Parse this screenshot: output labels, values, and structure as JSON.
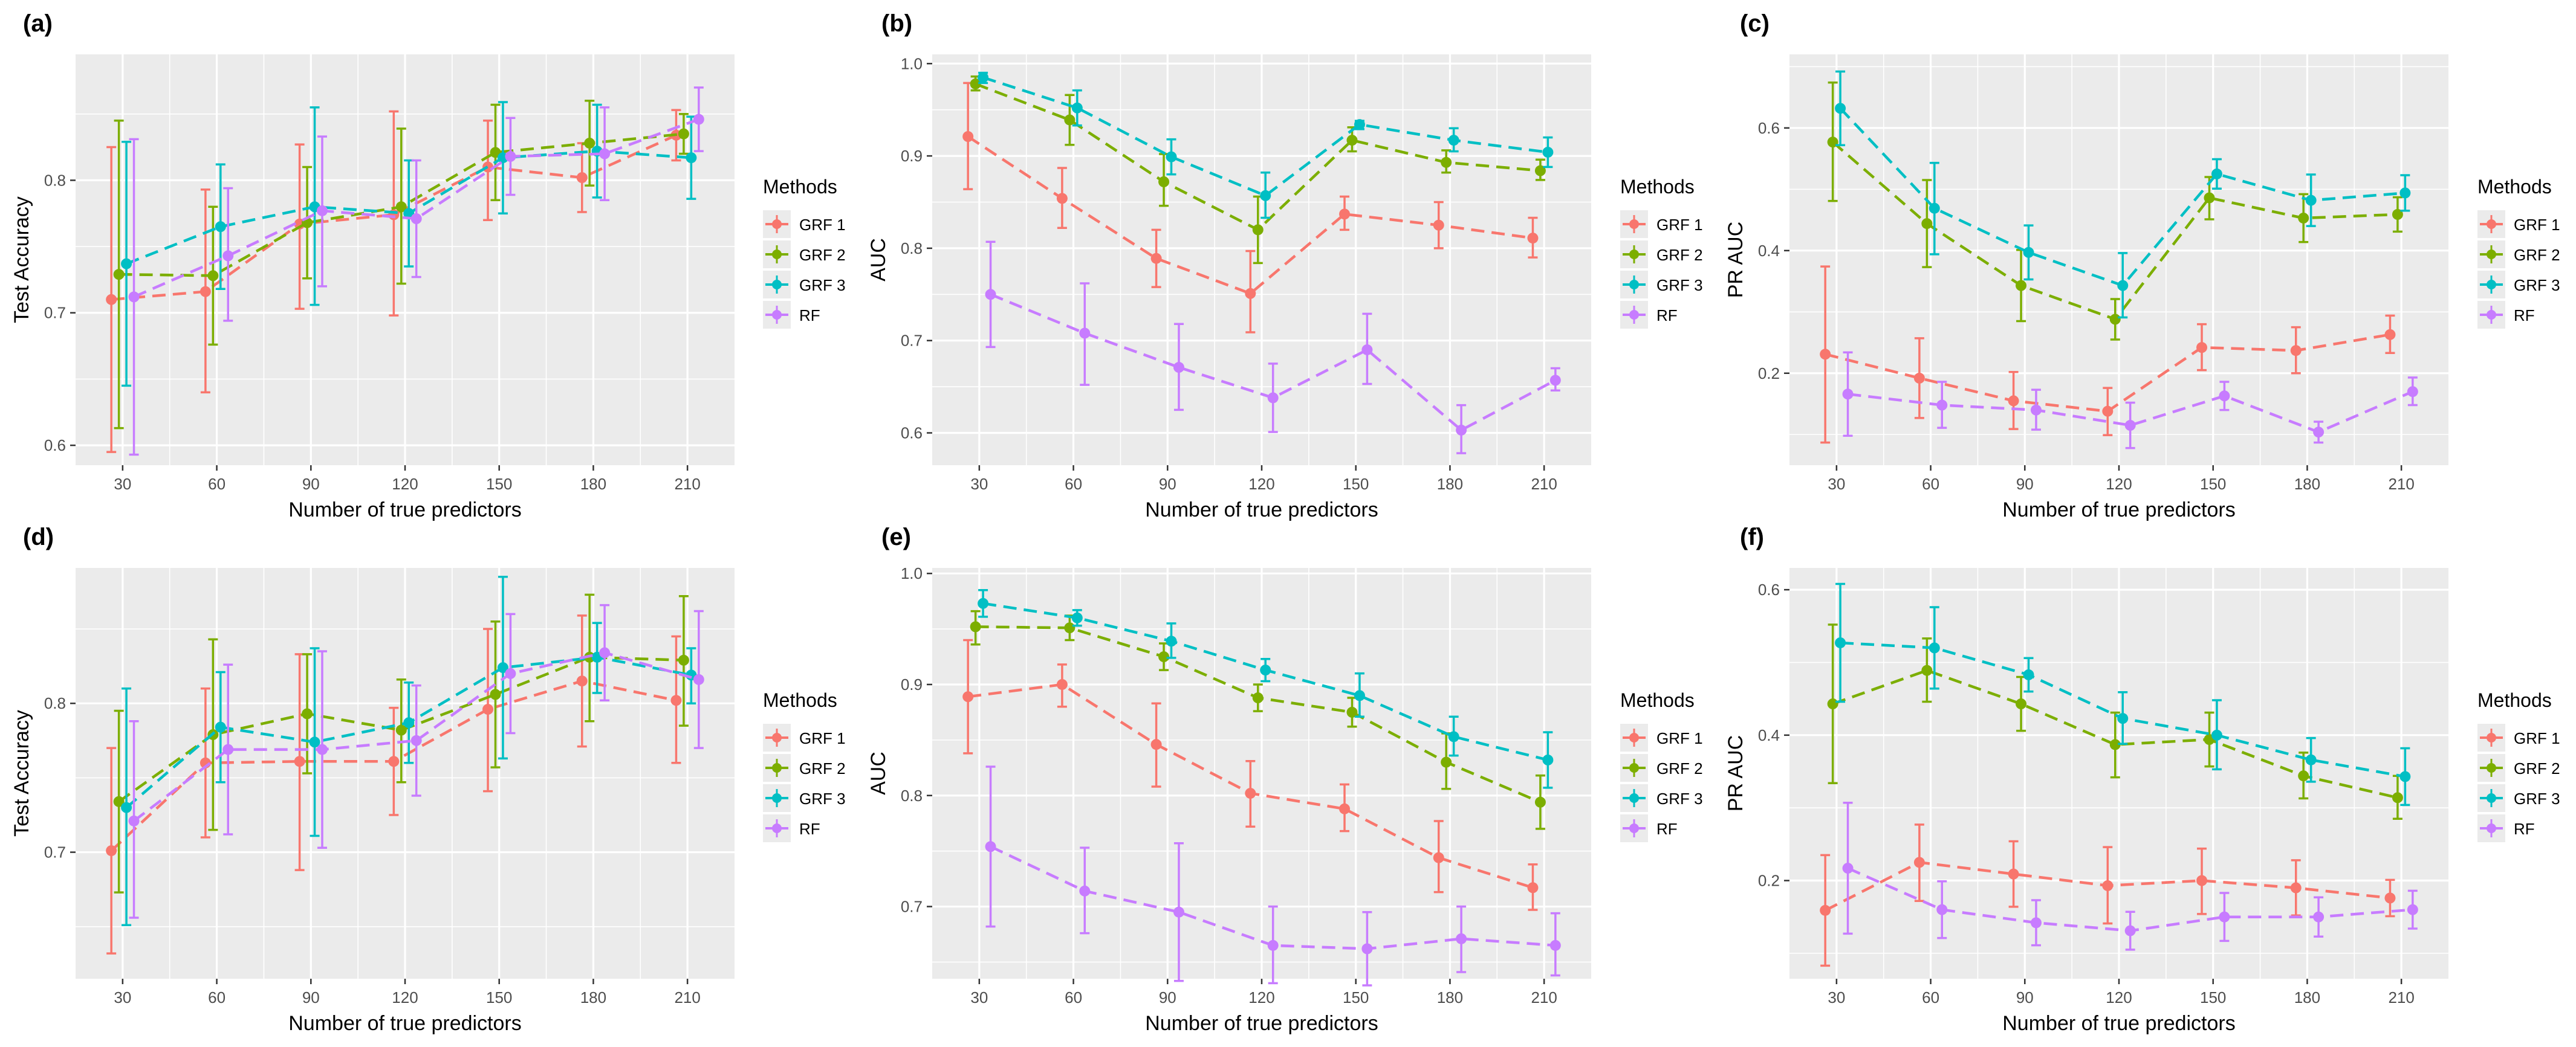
{
  "legend": {
    "title": "Methods",
    "entries": [
      "GRF 1",
      "GRF 2",
      "GRF 3",
      "RF"
    ],
    "colors": [
      "#F8766D",
      "#7CAE00",
      "#00BFC4",
      "#C77CFF"
    ]
  },
  "chart_data": [
    {
      "panel": "(a)",
      "type": "line",
      "title": "",
      "xlabel": "Number of true predictors",
      "ylabel": "Test Accuracy",
      "x": [
        30,
        60,
        90,
        120,
        150,
        180,
        210
      ],
      "xlim": [
        15,
        225
      ],
      "ylim": [
        0.585,
        0.895
      ],
      "yticks": [
        0.6,
        0.7,
        0.8
      ],
      "ytick_labels": [
        "0.6",
        "0.7",
        "0.8"
      ],
      "series": [
        {
          "name": "GRF 1",
          "values": [
            0.71,
            0.716,
            0.767,
            0.774,
            0.81,
            0.802,
            0.834
          ],
          "lower": [
            0.595,
            0.64,
            0.703,
            0.698,
            0.77,
            0.776,
            0.815
          ],
          "upper": [
            0.825,
            0.793,
            0.827,
            0.852,
            0.845,
            0.828,
            0.853
          ]
        },
        {
          "name": "GRF 2",
          "values": [
            0.729,
            0.728,
            0.768,
            0.78,
            0.821,
            0.828,
            0.835
          ],
          "lower": [
            0.613,
            0.676,
            0.726,
            0.722,
            0.785,
            0.796,
            0.82
          ],
          "upper": [
            0.845,
            0.78,
            0.81,
            0.839,
            0.857,
            0.86,
            0.85
          ]
        },
        {
          "name": "GRF 3",
          "values": [
            0.737,
            0.765,
            0.78,
            0.775,
            0.817,
            0.822,
            0.817
          ],
          "lower": [
            0.645,
            0.718,
            0.706,
            0.735,
            0.775,
            0.787,
            0.786
          ],
          "upper": [
            0.829,
            0.812,
            0.855,
            0.815,
            0.859,
            0.857,
            0.848
          ]
        },
        {
          "name": "RF",
          "values": [
            0.712,
            0.743,
            0.777,
            0.771,
            0.818,
            0.82,
            0.846
          ],
          "lower": [
            0.593,
            0.694,
            0.72,
            0.727,
            0.789,
            0.785,
            0.822
          ],
          "upper": [
            0.831,
            0.794,
            0.833,
            0.815,
            0.847,
            0.855,
            0.87
          ]
        }
      ]
    },
    {
      "panel": "(b)",
      "type": "line",
      "title": "",
      "xlabel": "Number of true predictors",
      "ylabel": "AUC",
      "x": [
        30,
        60,
        90,
        120,
        150,
        180,
        210
      ],
      "xlim": [
        15,
        225
      ],
      "ylim": [
        0.565,
        1.01
      ],
      "yticks": [
        0.6,
        0.7,
        0.8,
        0.9,
        1.0
      ],
      "ytick_labels": [
        "0.6",
        "0.7",
        "0.8",
        "0.9",
        "1.0"
      ],
      "series": [
        {
          "name": "GRF 1",
          "values": [
            0.921,
            0.854,
            0.789,
            0.751,
            0.837,
            0.825,
            0.811
          ],
          "lower": [
            0.864,
            0.822,
            0.758,
            0.709,
            0.82,
            0.8,
            0.79
          ],
          "upper": [
            0.979,
            0.887,
            0.82,
            0.797,
            0.856,
            0.85,
            0.833
          ]
        },
        {
          "name": "GRF 2",
          "values": [
            0.978,
            0.939,
            0.872,
            0.82,
            0.917,
            0.893,
            0.884
          ],
          "lower": [
            0.971,
            0.912,
            0.846,
            0.784,
            0.905,
            0.882,
            0.874
          ],
          "upper": [
            0.986,
            0.966,
            0.902,
            0.856,
            0.931,
            0.906,
            0.896
          ]
        },
        {
          "name": "GRF 3",
          "values": [
            0.985,
            0.952,
            0.899,
            0.857,
            0.934,
            0.917,
            0.904
          ],
          "lower": [
            0.979,
            0.933,
            0.88,
            0.833,
            0.929,
            0.905,
            0.888
          ],
          "upper": [
            0.99,
            0.971,
            0.918,
            0.882,
            0.938,
            0.93,
            0.92
          ]
        },
        {
          "name": "RF",
          "values": [
            0.75,
            0.708,
            0.671,
            0.638,
            0.69,
            0.603,
            0.657
          ],
          "lower": [
            0.693,
            0.652,
            0.625,
            0.601,
            0.653,
            0.578,
            0.646
          ],
          "upper": [
            0.807,
            0.762,
            0.718,
            0.675,
            0.729,
            0.63,
            0.67
          ]
        }
      ]
    },
    {
      "panel": "(c)",
      "type": "line",
      "title": "",
      "xlabel": "Number of true predictors",
      "ylabel": "PR AUC",
      "x": [
        30,
        60,
        90,
        120,
        150,
        180,
        210
      ],
      "xlim": [
        15,
        225
      ],
      "ylim": [
        0.05,
        0.72
      ],
      "yticks": [
        0.2,
        0.4,
        0.6
      ],
      "ytick_labels": [
        "0.2",
        "0.4",
        "0.6"
      ],
      "series": [
        {
          "name": "GRF 1",
          "values": [
            0.231,
            0.192,
            0.155,
            0.138,
            0.242,
            0.237,
            0.263
          ],
          "lower": [
            0.087,
            0.127,
            0.109,
            0.099,
            0.205,
            0.2,
            0.233
          ],
          "upper": [
            0.374,
            0.257,
            0.202,
            0.176,
            0.28,
            0.275,
            0.294
          ]
        },
        {
          "name": "GRF 2",
          "values": [
            0.577,
            0.444,
            0.343,
            0.288,
            0.486,
            0.453,
            0.459
          ],
          "lower": [
            0.481,
            0.373,
            0.285,
            0.255,
            0.451,
            0.414,
            0.431
          ],
          "upper": [
            0.674,
            0.515,
            0.401,
            0.321,
            0.52,
            0.492,
            0.487
          ]
        },
        {
          "name": "GRF 3",
          "values": [
            0.632,
            0.469,
            0.397,
            0.343,
            0.525,
            0.482,
            0.494
          ],
          "lower": [
            0.572,
            0.394,
            0.353,
            0.291,
            0.501,
            0.44,
            0.465
          ],
          "upper": [
            0.692,
            0.543,
            0.441,
            0.396,
            0.549,
            0.524,
            0.523
          ]
        },
        {
          "name": "RF",
          "values": [
            0.166,
            0.148,
            0.14,
            0.115,
            0.163,
            0.104,
            0.17
          ],
          "lower": [
            0.098,
            0.111,
            0.108,
            0.078,
            0.14,
            0.087,
            0.148
          ],
          "upper": [
            0.234,
            0.186,
            0.173,
            0.152,
            0.186,
            0.121,
            0.193
          ]
        }
      ]
    },
    {
      "panel": "(d)",
      "type": "line",
      "title": "",
      "xlabel": "Number of true predictors",
      "ylabel": "Test Accuracy",
      "x": [
        30,
        60,
        90,
        120,
        150,
        180,
        210
      ],
      "xlim": [
        15,
        225
      ],
      "ylim": [
        0.615,
        0.891
      ],
      "yticks": [
        0.7,
        0.8
      ],
      "ytick_labels": [
        "0.7",
        "0.8"
      ],
      "series": [
        {
          "name": "GRF 1",
          "values": [
            0.701,
            0.76,
            0.761,
            0.761,
            0.796,
            0.815,
            0.802
          ],
          "lower": [
            0.632,
            0.71,
            0.688,
            0.725,
            0.741,
            0.771,
            0.76
          ],
          "upper": [
            0.77,
            0.81,
            0.833,
            0.797,
            0.85,
            0.859,
            0.845
          ]
        },
        {
          "name": "GRF 2",
          "values": [
            0.734,
            0.779,
            0.793,
            0.782,
            0.806,
            0.831,
            0.829
          ],
          "lower": [
            0.673,
            0.715,
            0.753,
            0.747,
            0.757,
            0.788,
            0.785
          ],
          "upper": [
            0.795,
            0.843,
            0.833,
            0.816,
            0.855,
            0.873,
            0.872
          ]
        },
        {
          "name": "GRF 3",
          "values": [
            0.73,
            0.784,
            0.774,
            0.787,
            0.824,
            0.831,
            0.819
          ],
          "lower": [
            0.651,
            0.747,
            0.711,
            0.76,
            0.763,
            0.807,
            0.8
          ],
          "upper": [
            0.81,
            0.821,
            0.837,
            0.814,
            0.885,
            0.854,
            0.837
          ]
        },
        {
          "name": "RF",
          "values": [
            0.721,
            0.769,
            0.769,
            0.775,
            0.82,
            0.834,
            0.816
          ],
          "lower": [
            0.656,
            0.712,
            0.703,
            0.738,
            0.78,
            0.802,
            0.77
          ],
          "upper": [
            0.788,
            0.826,
            0.835,
            0.812,
            0.86,
            0.866,
            0.862
          ]
        }
      ]
    },
    {
      "panel": "(e)",
      "type": "line",
      "title": "",
      "xlabel": "Number of true predictors",
      "ylabel": "AUC",
      "x": [
        30,
        60,
        90,
        120,
        150,
        180,
        210
      ],
      "xlim": [
        15,
        225
      ],
      "ylim": [
        0.635,
        1.005
      ],
      "yticks": [
        0.7,
        0.8,
        0.9,
        1.0
      ],
      "ytick_labels": [
        "0.7",
        "0.8",
        "0.9",
        "1.0"
      ],
      "series": [
        {
          "name": "GRF 1",
          "values": [
            0.889,
            0.9,
            0.846,
            0.802,
            0.788,
            0.744,
            0.717
          ],
          "lower": [
            0.838,
            0.88,
            0.808,
            0.772,
            0.768,
            0.713,
            0.697
          ],
          "upper": [
            0.94,
            0.918,
            0.883,
            0.831,
            0.81,
            0.777,
            0.738
          ]
        },
        {
          "name": "GRF 2",
          "values": [
            0.952,
            0.951,
            0.925,
            0.888,
            0.875,
            0.83,
            0.794
          ],
          "lower": [
            0.936,
            0.94,
            0.913,
            0.876,
            0.862,
            0.806,
            0.77
          ],
          "upper": [
            0.966,
            0.962,
            0.937,
            0.9,
            0.888,
            0.856,
            0.818
          ]
        },
        {
          "name": "GRF 3",
          "values": [
            0.973,
            0.96,
            0.939,
            0.913,
            0.89,
            0.853,
            0.832
          ],
          "lower": [
            0.961,
            0.953,
            0.924,
            0.903,
            0.871,
            0.836,
            0.807
          ],
          "upper": [
            0.985,
            0.967,
            0.955,
            0.923,
            0.91,
            0.871,
            0.857
          ]
        },
        {
          "name": "RF",
          "values": [
            0.754,
            0.714,
            0.695,
            0.665,
            0.662,
            0.671,
            0.665
          ],
          "lower": [
            0.682,
            0.676,
            0.633,
            0.631,
            0.629,
            0.641,
            0.638
          ],
          "upper": [
            0.826,
            0.753,
            0.757,
            0.7,
            0.695,
            0.7,
            0.694
          ]
        }
      ]
    },
    {
      "panel": "(f)",
      "type": "line",
      "title": "",
      "xlabel": "Number of true predictors",
      "ylabel": "PR AUC",
      "x": [
        30,
        60,
        90,
        120,
        150,
        180,
        210
      ],
      "xlim": [
        15,
        225
      ],
      "ylim": [
        0.065,
        0.63
      ],
      "yticks": [
        0.2,
        0.4,
        0.6
      ],
      "ytick_labels": [
        "0.2",
        "0.4",
        "0.6"
      ],
      "series": [
        {
          "name": "GRF 1",
          "values": [
            0.159,
            0.225,
            0.209,
            0.193,
            0.2,
            0.19,
            0.176
          ],
          "lower": [
            0.083,
            0.172,
            0.164,
            0.141,
            0.154,
            0.152,
            0.151
          ],
          "upper": [
            0.235,
            0.277,
            0.254,
            0.246,
            0.244,
            0.228,
            0.201
          ]
        },
        {
          "name": "GRF 2",
          "values": [
            0.443,
            0.489,
            0.443,
            0.387,
            0.394,
            0.344,
            0.314
          ],
          "lower": [
            0.334,
            0.446,
            0.406,
            0.342,
            0.357,
            0.313,
            0.285
          ],
          "upper": [
            0.552,
            0.533,
            0.48,
            0.431,
            0.431,
            0.376,
            0.344
          ]
        },
        {
          "name": "GRF 3",
          "values": [
            0.527,
            0.52,
            0.483,
            0.423,
            0.4,
            0.366,
            0.343
          ],
          "lower": [
            0.446,
            0.464,
            0.46,
            0.388,
            0.353,
            0.336,
            0.304
          ],
          "upper": [
            0.608,
            0.576,
            0.506,
            0.459,
            0.448,
            0.396,
            0.382
          ]
        },
        {
          "name": "RF",
          "values": [
            0.217,
            0.16,
            0.142,
            0.131,
            0.15,
            0.15,
            0.16
          ],
          "lower": [
            0.127,
            0.121,
            0.111,
            0.105,
            0.117,
            0.123,
            0.134
          ],
          "upper": [
            0.307,
            0.199,
            0.173,
            0.157,
            0.183,
            0.177,
            0.186
          ]
        }
      ]
    }
  ]
}
